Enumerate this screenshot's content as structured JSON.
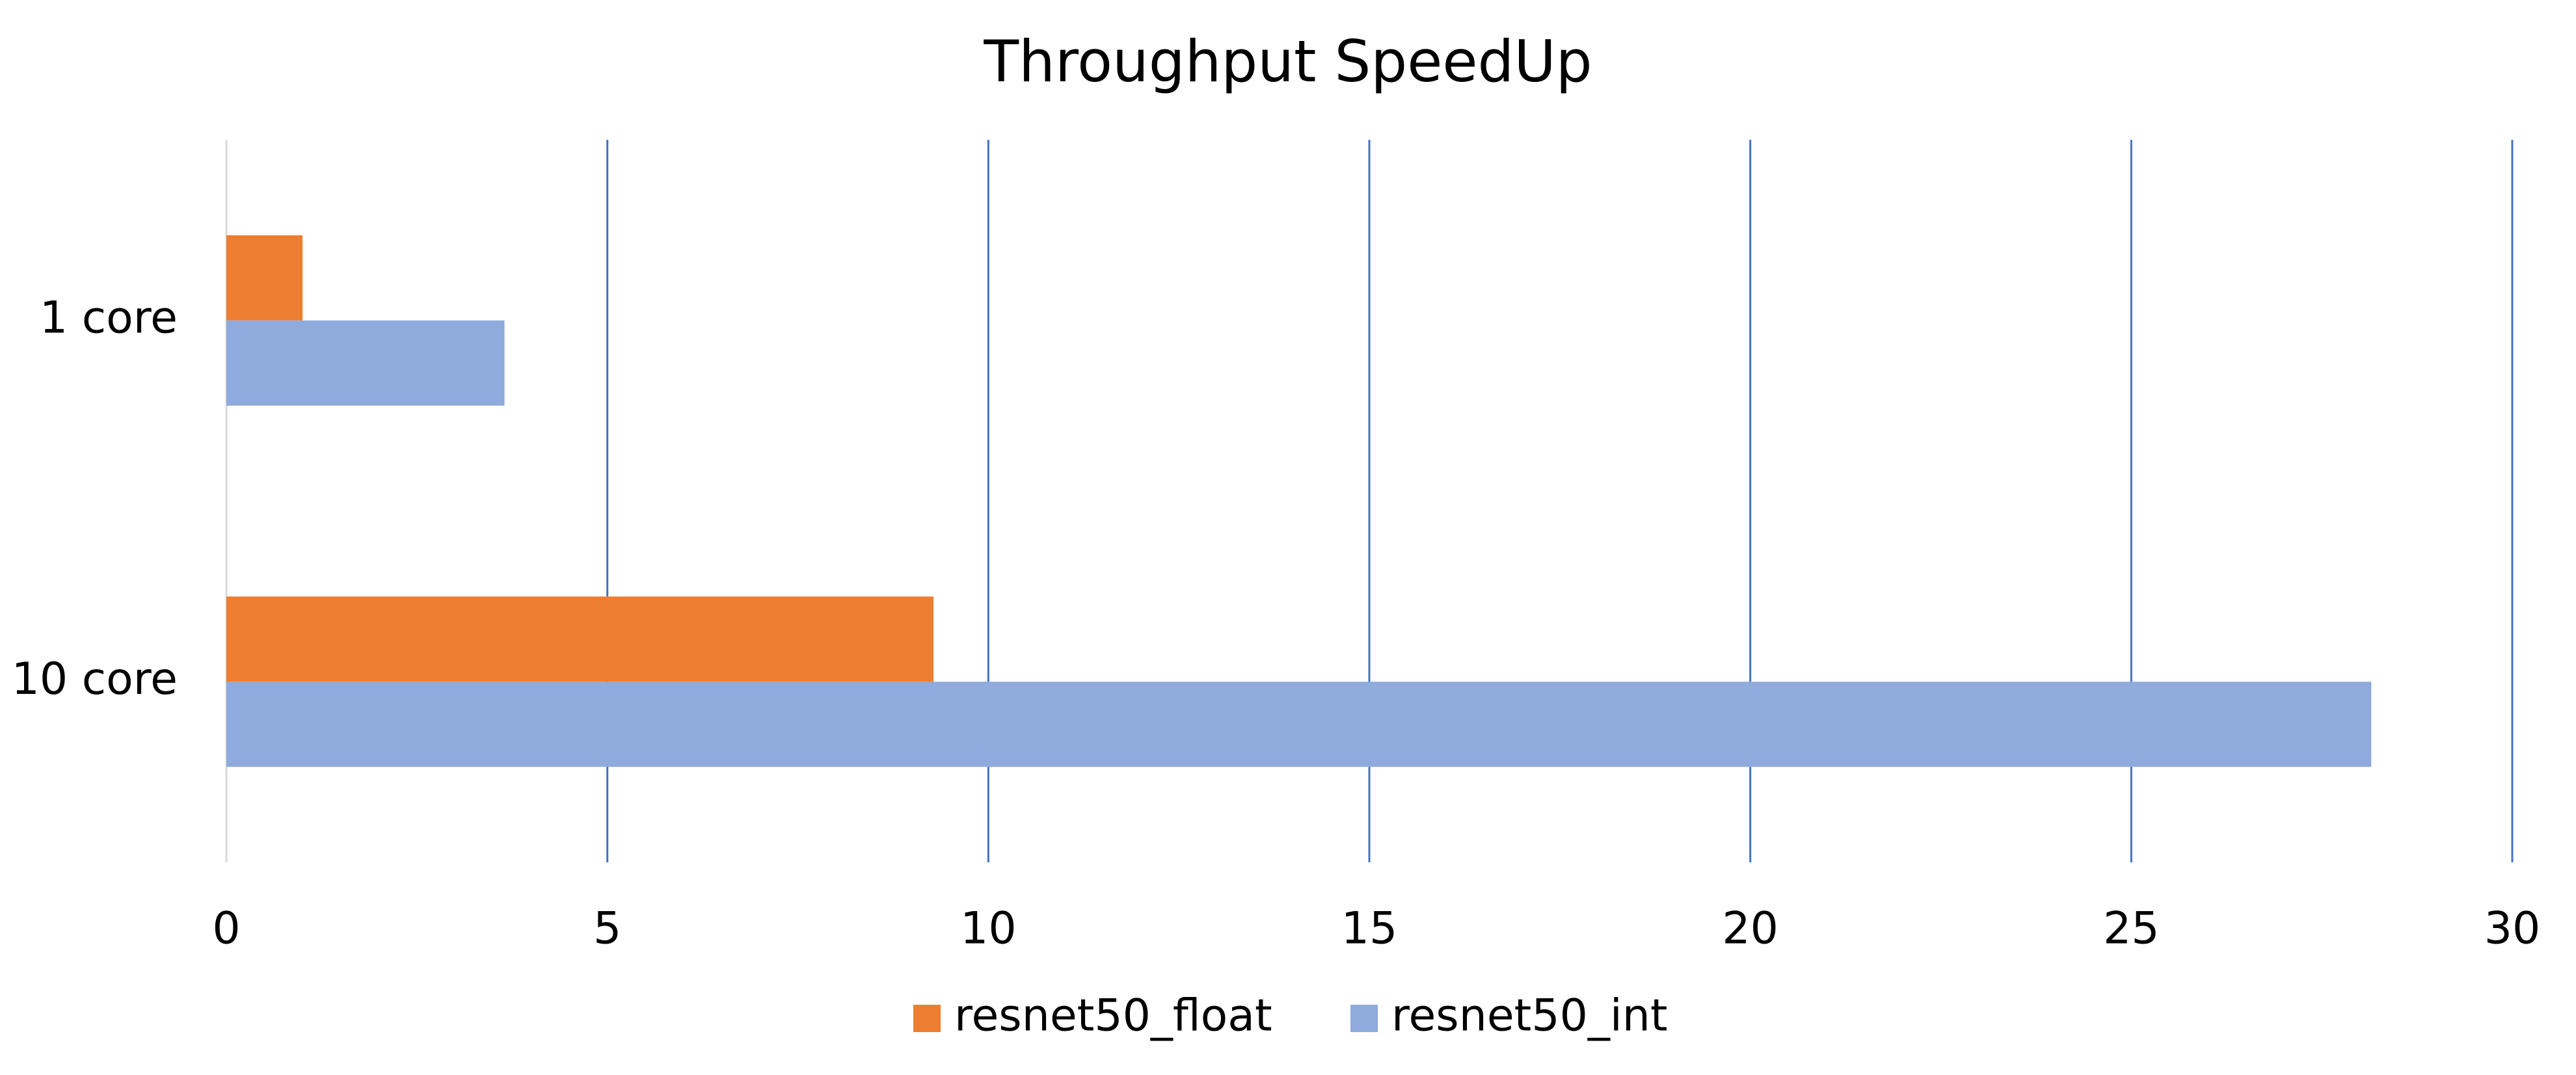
{
  "chart_data": {
    "type": "bar",
    "orientation": "horizontal",
    "title": "Throughput SpeedUp",
    "categories": [
      "1 core",
      "10 core"
    ],
    "series": [
      {
        "name": "resnet50_float",
        "color": "#ed7d31",
        "values": [
          1,
          9.28
        ]
      },
      {
        "name": "resnet50_int",
        "color": "#8faadc",
        "values": [
          3.65,
          28.15
        ]
      }
    ],
    "xlim": [
      0,
      30
    ],
    "xticks": [
      0,
      5,
      10,
      15,
      20,
      25,
      30
    ],
    "grid": true,
    "grid_color": "#4472c4",
    "legend": "bottom"
  }
}
